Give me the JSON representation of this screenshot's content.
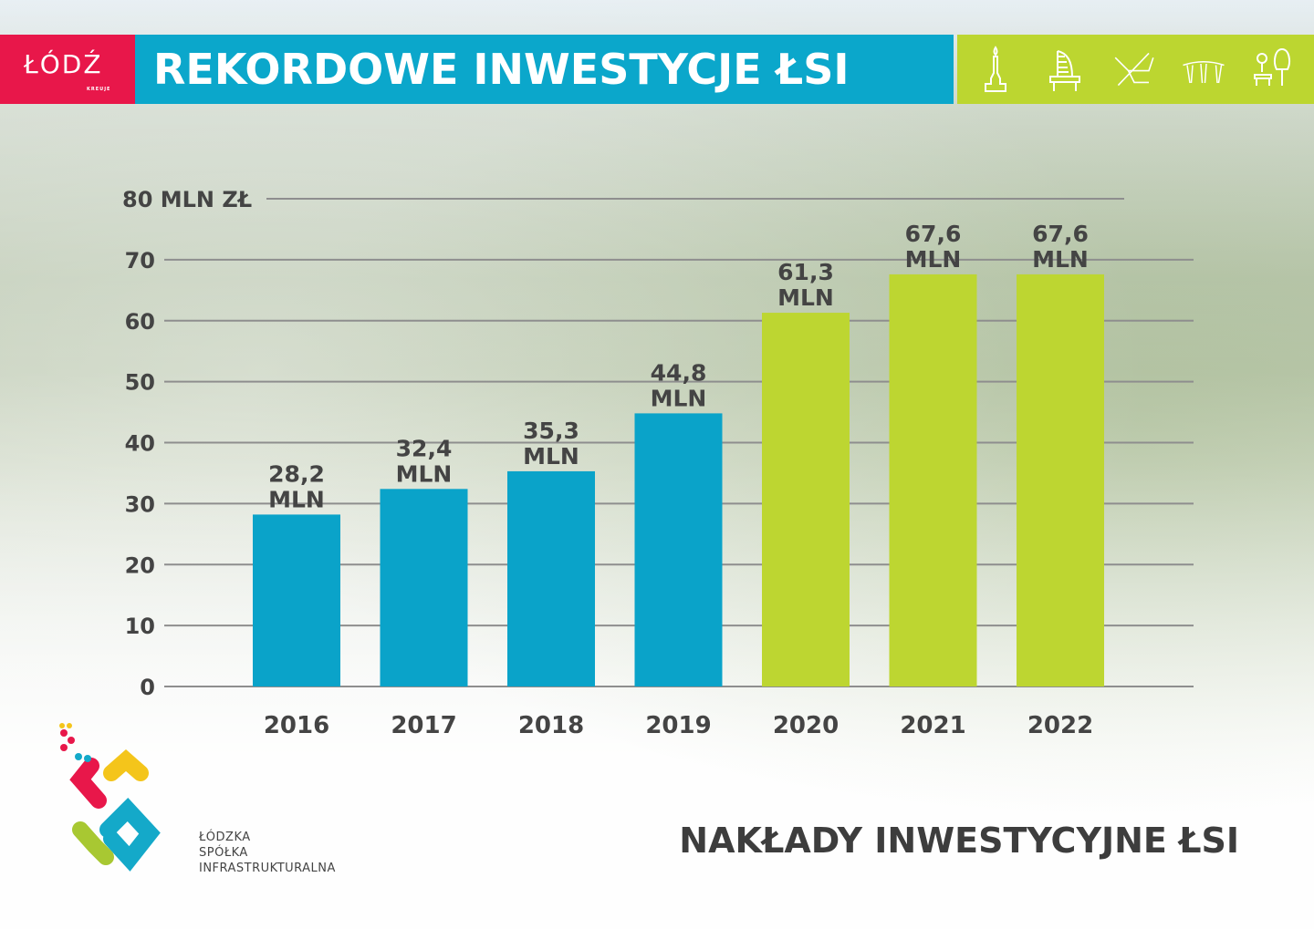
{
  "header": {
    "logo_text": "ŁÓDŹ",
    "logo_sub": "KREUJE",
    "title": "REKORDOWE INWESTYCJE ŁSI",
    "icons": [
      "monument-icon",
      "sculpture-icon",
      "rowing-boat-icon",
      "pavilion-icon",
      "park-bench-tree-icon"
    ]
  },
  "chart_data": {
    "type": "bar",
    "title": "NAKŁADY INWESTYCYJNE ŁSI",
    "ylabel": "MLN ZŁ",
    "categories": [
      "2016",
      "2017",
      "2018",
      "2019",
      "2020",
      "2021",
      "2022"
    ],
    "values": [
      28.2,
      32.4,
      35.3,
      44.8,
      61.3,
      67.6,
      67.6
    ],
    "data_labels": [
      [
        "28,2",
        "MLN"
      ],
      [
        "32,4",
        "MLN"
      ],
      [
        "35,3",
        "MLN"
      ],
      [
        "44,8",
        "MLN"
      ],
      [
        "61,3",
        "MLN"
      ],
      [
        "67,6",
        "MLN"
      ],
      [
        "67,6",
        "MLN"
      ]
    ],
    "bar_colors": [
      "#0aa3c9",
      "#0aa3c9",
      "#0aa3c9",
      "#0aa3c9",
      "#bdd631",
      "#bdd631",
      "#bdd631"
    ],
    "yticks": [
      "0",
      "10",
      "20",
      "30",
      "40",
      "50",
      "60",
      "70",
      "80 MLN ZŁ"
    ],
    "ylim": [
      0,
      80
    ],
    "grid": true
  },
  "footer": {
    "title": "NAKŁADY INWESTYCYJNE ŁSI",
    "org_lines": [
      "ŁÓDZKA",
      "SPÓŁKA",
      "INFRASTRUKTURALNA"
    ]
  }
}
